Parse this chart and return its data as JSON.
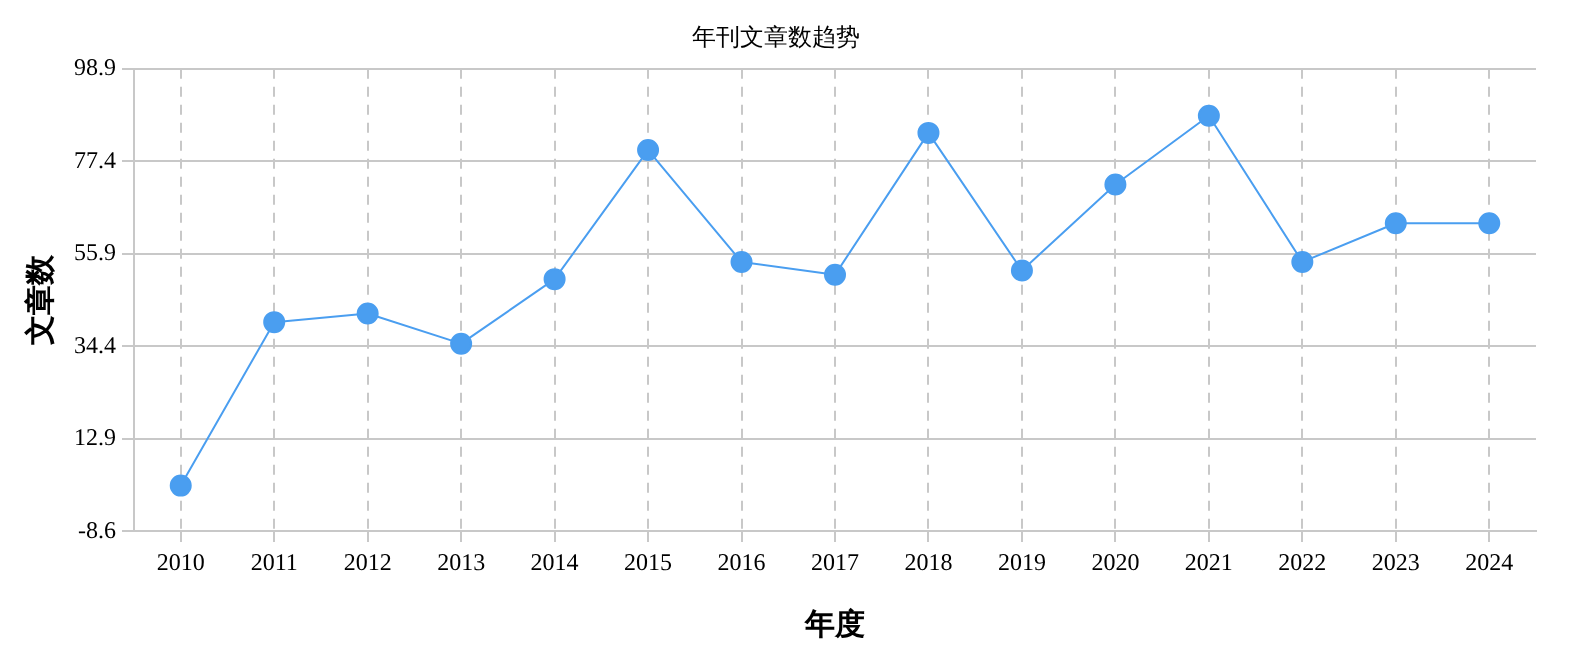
{
  "chart_data": {
    "type": "line",
    "title": "年刊文章数趋势",
    "xlabel": "年度",
    "ylabel": "文章数",
    "categories": [
      "2010",
      "2011",
      "2012",
      "2013",
      "2014",
      "2015",
      "2016",
      "2017",
      "2018",
      "2019",
      "2020",
      "2021",
      "2022",
      "2023",
      "2024"
    ],
    "series": [
      {
        "color": "#4a9ef0",
        "values": [
          2,
          40,
          42,
          35,
          50,
          80,
          54,
          51,
          84,
          52,
          72,
          88,
          54,
          63,
          63
        ]
      }
    ],
    "ylim": [
      -8.6,
      98.9
    ],
    "yticks": [
      -8.6,
      12.9,
      34.4,
      55.9,
      77.4,
      98.9
    ],
    "grid": true,
    "marker": "circle",
    "line_style": "solid",
    "legend": false
  }
}
